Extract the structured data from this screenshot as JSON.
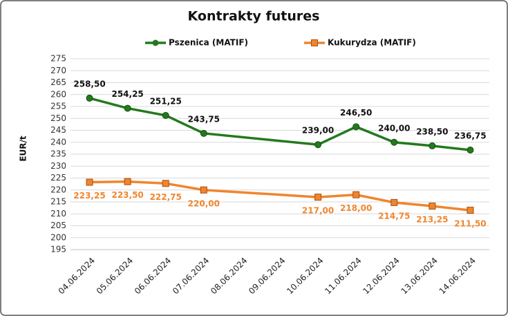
{
  "chart_data": {
    "type": "line",
    "title": "Kontrakty futures",
    "y_label": "EUR/t",
    "x": [
      "04.06.2024",
      "05.06.2024",
      "06.06.2024",
      "07.06.2024",
      "10.06.2024",
      "11.06.2024",
      "12.06.2024",
      "13.06.2024",
      "14.06.2024"
    ],
    "xticks": [
      "04.06.2024",
      "05.06.2024",
      "06.06.2024",
      "07.06.2024",
      "08.06.2024",
      "09.06.2024",
      "10.06.2024",
      "11.06.2024",
      "12.06.2024",
      "13.06.2024",
      "14.06.2024"
    ],
    "series": [
      {
        "name": "Pszenica (MATIF)",
        "color": "#237a1e",
        "marker": "circle",
        "values": [
          258.5,
          254.25,
          251.25,
          243.75,
          239,
          246.5,
          240,
          238.5,
          236.75
        ],
        "value_labels": [
          "258,50",
          "254,25",
          "251,25",
          "243,75",
          "239,00",
          "246,50",
          "240,00",
          "238,50",
          "236,75"
        ]
      },
      {
        "name": "Kukurydza (MATIF)",
        "color": "#f0852d",
        "marker": "square",
        "values": [
          223.25,
          223.5,
          222.75,
          220,
          217,
          218,
          214.75,
          213.25,
          211.5
        ],
        "value_labels": [
          "223,25",
          "223,50",
          "222,75",
          "220,00",
          "217,00",
          "218,00",
          "214,75",
          "213,25",
          "211,50"
        ]
      }
    ],
    "ylim": [
      195,
      275
    ],
    "yticks": [
      195,
      200,
      205,
      210,
      215,
      220,
      225,
      230,
      235,
      240,
      245,
      250,
      255,
      260,
      265,
      270,
      275
    ],
    "grid": true
  }
}
